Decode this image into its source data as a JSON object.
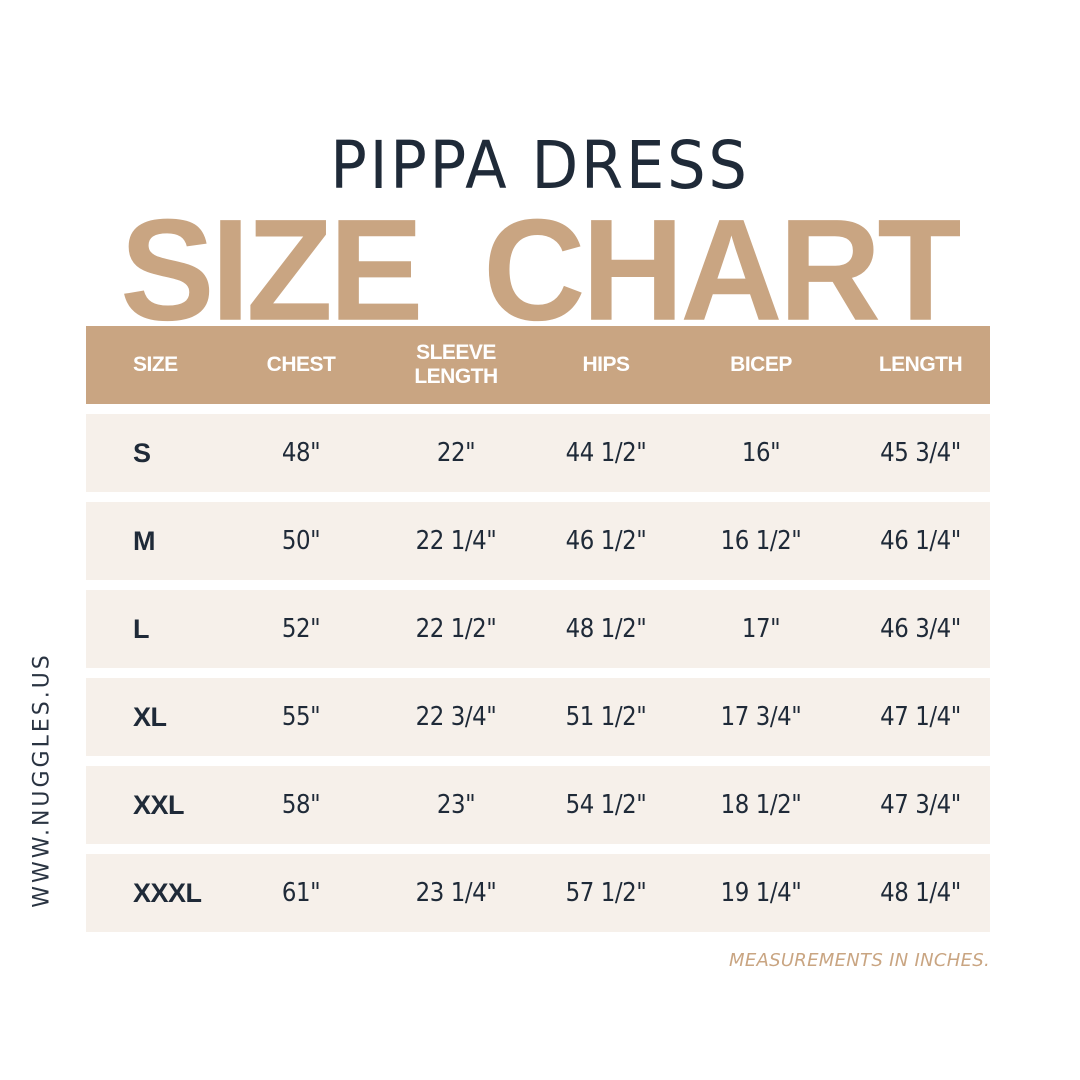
{
  "product_title": "PIPPA DRESS",
  "hero_title": {
    "word1": "SIZE",
    "word2": "CHART"
  },
  "colors": {
    "accent": "#c9a582",
    "row_bg": "#f6f0ea",
    "text": "#1f2a38",
    "background": "#ffffff"
  },
  "table": {
    "headers": [
      "SIZE",
      "CHEST",
      "SLEEVE LENGTH",
      "HIPS",
      "BICEP",
      "LENGTH"
    ],
    "rows": [
      {
        "size": "S",
        "chest": "48\"",
        "sleeve_length": "22\"",
        "hips": "44 1/2\"",
        "bicep": "16\"",
        "length": "45 3/4\""
      },
      {
        "size": "M",
        "chest": "50\"",
        "sleeve_length": "22 1/4\"",
        "hips": "46 1/2\"",
        "bicep": "16 1/2\"",
        "length": "46 1/4\""
      },
      {
        "size": "L",
        "chest": "52\"",
        "sleeve_length": "22 1/2\"",
        "hips": "48 1/2\"",
        "bicep": "17\"",
        "length": "46 3/4\""
      },
      {
        "size": "XL",
        "chest": "55\"",
        "sleeve_length": "22 3/4\"",
        "hips": "51 1/2\"",
        "bicep": "17 3/4\"",
        "length": "47 1/4\""
      },
      {
        "size": "XXL",
        "chest": "58\"",
        "sleeve_length": "23\"",
        "hips": "54 1/2\"",
        "bicep": "18 1/2\"",
        "length": "47 3/4\""
      },
      {
        "size": "XXXL",
        "chest": "61\"",
        "sleeve_length": "23 1/4\"",
        "hips": "57 1/2\"",
        "bicep": "19 1/4\"",
        "length": "48 1/4\""
      }
    ]
  },
  "side_url": "WWW.NUGGLES.US",
  "footnote": "MEASUREMENTS IN INCHES."
}
